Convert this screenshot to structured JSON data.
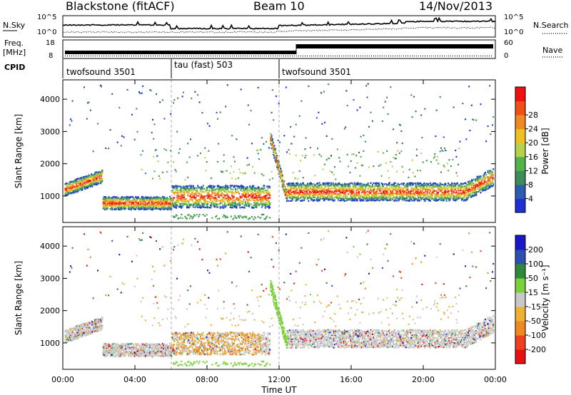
{
  "header": {
    "title": "Blackstone (fitACF)",
    "beam": "Beam 10",
    "date": "14/Nov/2013"
  },
  "noise_panel": {
    "left_label": "N.Sky",
    "right_label": "N.Search",
    "left_ticks": [
      "10^5",
      "10^0"
    ],
    "right_ticks": [
      "10^5",
      "10^0"
    ]
  },
  "freq_panel": {
    "left_label_1": "Freq.",
    "left_label_2": "[MHz]",
    "right_label": "Nave",
    "left_ticks": [
      "18",
      "8"
    ],
    "right_ticks": [
      "60",
      "0"
    ]
  },
  "cpid": {
    "label": "CPID",
    "modes": [
      {
        "name": "twofsound 3501",
        "start": 0,
        "end": 6
      },
      {
        "name": "tau (fast) 503",
        "start": 6,
        "end": 12
      },
      {
        "name": "twofsound 3501",
        "start": 12,
        "end": 24
      }
    ]
  },
  "colors": {
    "power": [
      "#2030d8",
      "#2c5db0",
      "#3d8c5a",
      "#52b34a",
      "#b8d14a",
      "#f0c020",
      "#f08a20",
      "#f05018",
      "#f01010"
    ],
    "velocity": [
      "#e81010",
      "#f04020",
      "#f08a20",
      "#f0b030",
      "#c8c8c8",
      "#7ad13a",
      "#2e8a3a",
      "#2c50b0",
      "#1818c8"
    ]
  },
  "chart_data": [
    {
      "type": "heatmap",
      "name": "power",
      "xlabel": "",
      "ylabel": "Slant Range [km]",
      "x_ticks": [
        "00:00",
        "04:00",
        "08:00",
        "12:00",
        "16:00",
        "20:00",
        "00:00"
      ],
      "xlim_hours": [
        0,
        24
      ],
      "y_ticks": [
        1000,
        2000,
        3000,
        4000
      ],
      "ylim": [
        180,
        4600
      ],
      "colorbar_label": "Power [dB]",
      "colorbar_ticks": [
        4,
        8,
        12,
        16,
        20,
        24,
        28
      ]
    },
    {
      "type": "heatmap",
      "name": "velocity",
      "xlabel": "Time UT",
      "ylabel": "Slant Range [km]",
      "x_ticks": [
        "00:00",
        "04:00",
        "08:00",
        "12:00",
        "16:00",
        "20:00",
        "00:00"
      ],
      "xlim_hours": [
        0,
        24
      ],
      "y_ticks": [
        1000,
        2000,
        3000,
        4000
      ],
      "ylim": [
        180,
        4600
      ],
      "colorbar_label": "Velocity [m s⁻¹]",
      "colorbar_ticks": [
        -200,
        -100,
        -50,
        -15,
        15,
        50,
        100,
        200
      ]
    }
  ]
}
